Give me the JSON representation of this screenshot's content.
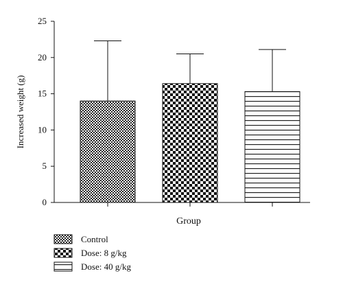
{
  "chart_data": {
    "type": "bar",
    "ylabel": "Increased weight (g)",
    "xlabel": "Group",
    "ylim": [
      0,
      25
    ],
    "yticks": [
      0,
      5,
      10,
      15,
      20,
      25
    ],
    "grid": false,
    "legend_position": "bottom-left",
    "error_bars": "upper",
    "series": [
      {
        "name": "Control",
        "value": 14.0,
        "error": 8.3,
        "pattern": "fine-checker"
      },
      {
        "name": "Dose: 8 g/kg",
        "value": 16.4,
        "error": 4.1,
        "pattern": "coarse-checker"
      },
      {
        "name": "Dose: 40 g/kg",
        "value": 15.3,
        "error": 5.8,
        "pattern": "horizontal-stripes"
      }
    ]
  }
}
